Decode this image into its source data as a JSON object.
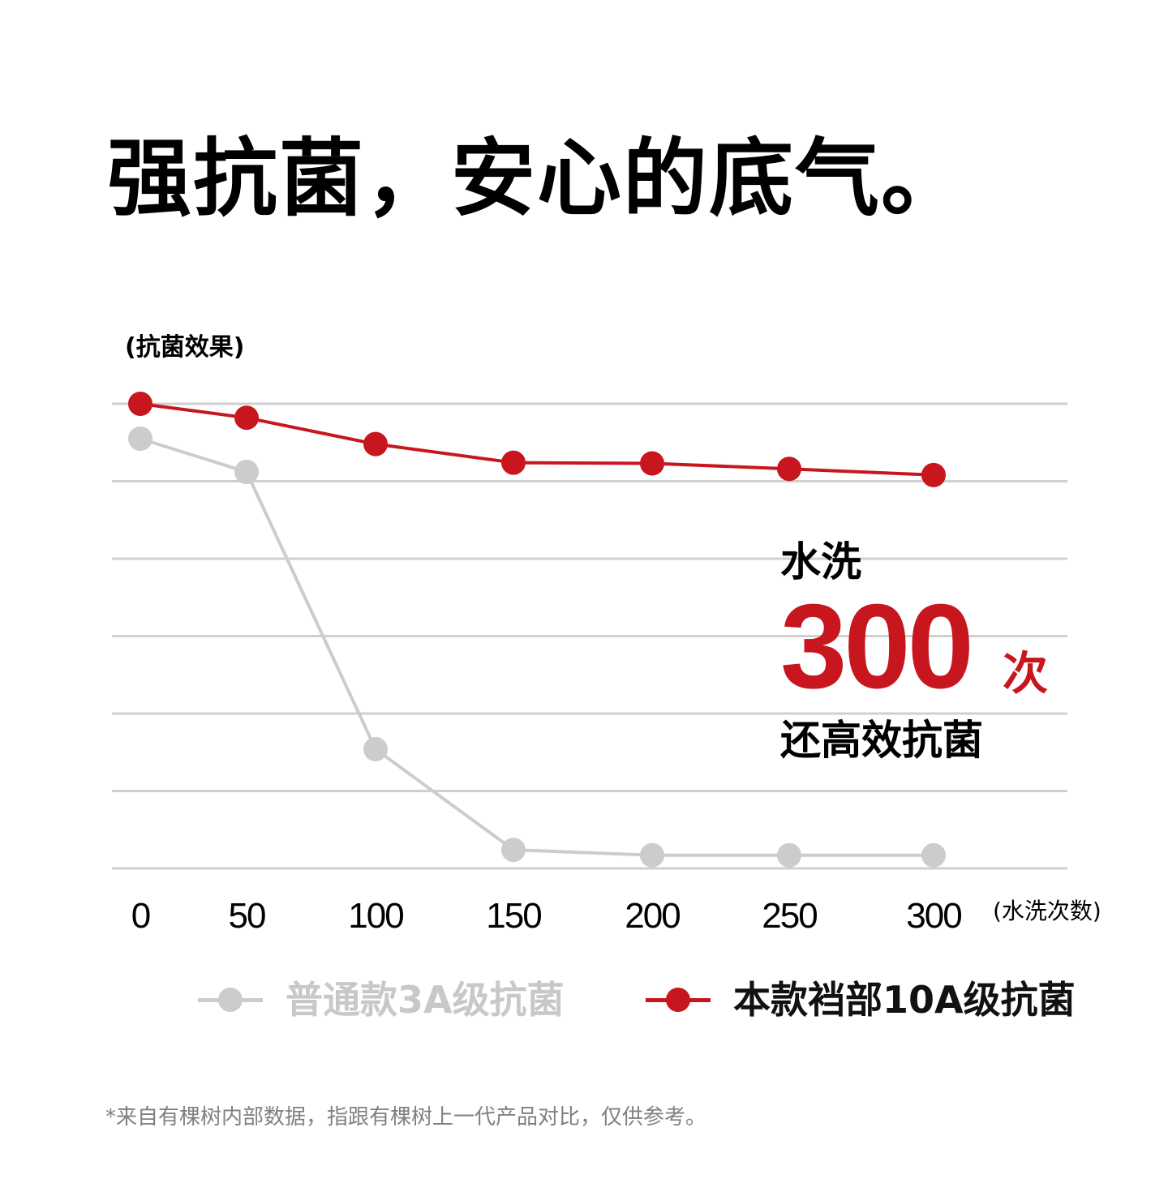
{
  "headline": "强抗菌，安心的底气。",
  "callout": {
    "pre": "水洗",
    "number": "300",
    "unit": "次",
    "post": "还高效抗菌"
  },
  "footnote": "*来自有棵树内部数据，指跟有棵树上一代产品对比，仅供参考。",
  "colors": {
    "accent_red": "#c8161e",
    "series_gray": "#cccccc",
    "grid": "#d0d0d0"
  },
  "chart_data": {
    "type": "line",
    "title": "",
    "ylabel": "(抗菌效果)",
    "xlabel": "(水洗次数)",
    "x": [
      0,
      50,
      100,
      150,
      200,
      250,
      300
    ],
    "tick_labels": [
      "0",
      "50",
      "100",
      "150",
      "200",
      "250",
      "300"
    ],
    "ylim": [
      0,
      6
    ],
    "y_ticks": [
      0,
      1,
      2,
      3,
      4,
      5,
      6
    ],
    "y_tick_labels_visible": false,
    "grid": true,
    "legend_position": "bottom",
    "series": [
      {
        "name": "普通款3A级抗菌",
        "color": "#cccccc",
        "values": [
          5.55,
          5.12,
          1.54,
          0.24,
          0.17,
          0.17,
          0.17
        ]
      },
      {
        "name": "本款裆部10A级抗菌",
        "color": "#c8161e",
        "values": [
          6.0,
          5.82,
          5.48,
          5.24,
          5.23,
          5.16,
          5.08
        ]
      }
    ]
  }
}
